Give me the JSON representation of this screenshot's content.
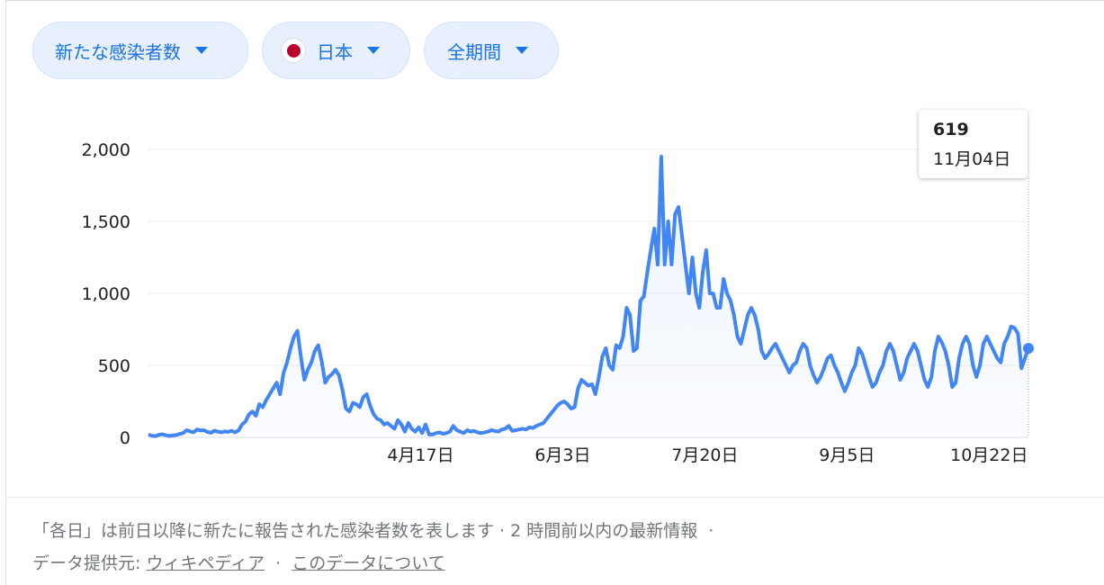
{
  "filters": {
    "metric": "新たな感染者数",
    "region": "日本",
    "period": "全期間"
  },
  "tooltip": {
    "value": "619",
    "date": "11月04日"
  },
  "footer": {
    "note": "「各日」は前日以降に新たに報告された感染者数を表します · 2 時間前以内の最新情報",
    "dot": "·",
    "source_label": "データ提供元:",
    "source_link": "ウィキペディア",
    "about_link": "このデータについて"
  },
  "colors": {
    "line": "#4285f4",
    "accent": "#1a73e8",
    "flag": "#bc002d"
  },
  "chart_data": {
    "type": "area",
    "y_ticks": [
      "0",
      "500",
      "1,000",
      "1,500",
      "2,000"
    ],
    "ylim": [
      0,
      2000
    ],
    "x_ticks": [
      {
        "label": "4月17日",
        "day": 105
      },
      {
        "label": "6月3日",
        "day": 152
      },
      {
        "label": "7月20日",
        "day": 199
      },
      {
        "label": "9月5日",
        "day": 246
      },
      {
        "label": "10月22日",
        "day": 293
      }
    ],
    "x_range_days": [
      15,
      306
    ],
    "series": [
      {
        "values": [
          20,
          12,
          8,
          18,
          22,
          15,
          10,
          14,
          16,
          24,
          30,
          50,
          42,
          35,
          55,
          48,
          50,
          38,
          32,
          46,
          40,
          35,
          42,
          38,
          46,
          35,
          48,
          90,
          110,
          160,
          180,
          150,
          230,
          210,
          260,
          300,
          340,
          380,
          300,
          450,
          520,
          620,
          700,
          740,
          560,
          400,
          470,
          520,
          600,
          640,
          530,
          380,
          420,
          440,
          470,
          430,
          330,
          200,
          180,
          240,
          230,
          210,
          280,
          300,
          220,
          160,
          130,
          120,
          90,
          100,
          80,
          60,
          120,
          90,
          40,
          100,
          60,
          40,
          70,
          30,
          90,
          20,
          20,
          30,
          35,
          25,
          30,
          40,
          80,
          50,
          40,
          30,
          50,
          40,
          45,
          35,
          30,
          35,
          40,
          50,
          45,
          40,
          55,
          60,
          80,
          45,
          50,
          55,
          60,
          55,
          70,
          65,
          80,
          90,
          100,
          130,
          160,
          190,
          220,
          240,
          250,
          230,
          200,
          210,
          340,
          400,
          380,
          360,
          370,
          300,
          420,
          560,
          620,
          500,
          470,
          640,
          620,
          700,
          900,
          850,
          600,
          620,
          950,
          980,
          1150,
          1300,
          1450,
          1200,
          1950,
          1200,
          1500,
          1200,
          1550,
          1600,
          1400,
          1200,
          1000,
          1250,
          1000,
          900,
          1150,
          1300,
          1000,
          1000,
          900,
          900,
          1100,
          1000,
          950,
          850,
          700,
          650,
          750,
          850,
          900,
          850,
          750,
          600,
          550,
          580,
          620,
          650,
          600,
          550,
          500,
          450,
          500,
          520,
          600,
          650,
          620,
          500,
          430,
          380,
          420,
          480,
          550,
          570,
          500,
          450,
          380,
          320,
          380,
          450,
          500,
          620,
          580,
          500,
          420,
          350,
          380,
          450,
          500,
          600,
          650,
          600,
          500,
          400,
          450,
          550,
          600,
          650,
          600,
          500,
          400,
          350,
          420,
          600,
          700,
          660,
          600,
          500,
          350,
          380,
          550,
          650,
          700,
          650,
          500,
          420,
          500,
          650,
          700,
          650,
          600,
          550,
          520,
          650,
          700,
          770,
          760,
          720,
          480,
          550,
          619
        ]
      }
    ]
  }
}
